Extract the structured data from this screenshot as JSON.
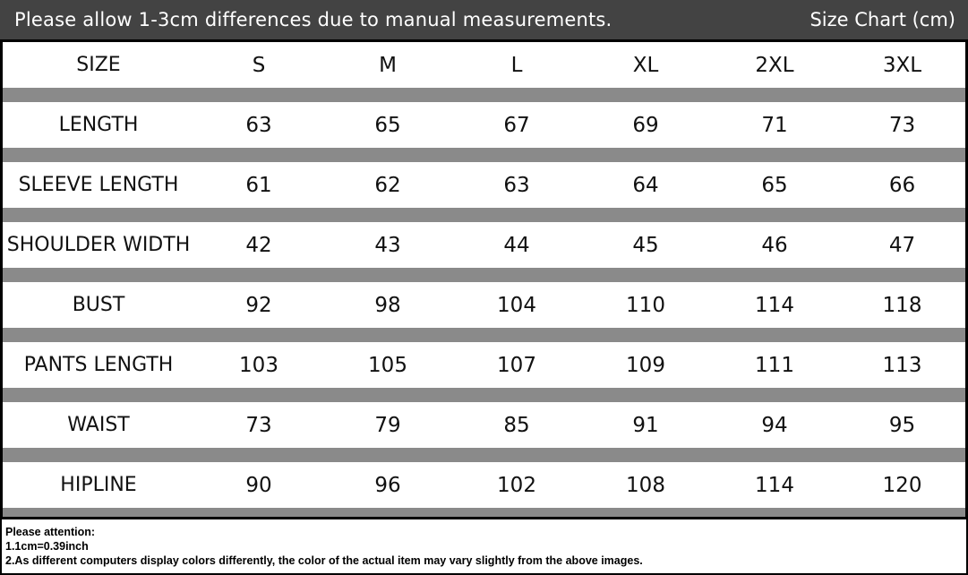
{
  "header": {
    "note": "Please allow 1-3cm differences due to manual measurements.",
    "title": "Size Chart (cm)"
  },
  "table": {
    "columns": [
      "SIZE",
      "S",
      "M",
      "L",
      "XL",
      "2XL",
      "3XL"
    ],
    "rows": [
      {
        "label": "LENGTH",
        "values": [
          "63",
          "65",
          "67",
          "69",
          "71",
          "73"
        ]
      },
      {
        "label": "SLEEVE LENGTH",
        "values": [
          "61",
          "62",
          "63",
          "64",
          "65",
          "66"
        ]
      },
      {
        "label": "SHOULDER WIDTH",
        "values": [
          "42",
          "43",
          "44",
          "45",
          "46",
          "47"
        ]
      },
      {
        "label": "BUST",
        "values": [
          "92",
          "98",
          "104",
          "110",
          "114",
          "118"
        ]
      },
      {
        "label": "PANTS LENGTH",
        "values": [
          "103",
          "105",
          "107",
          "109",
          "111",
          "113"
        ]
      },
      {
        "label": "WAIST",
        "values": [
          "73",
          "79",
          "85",
          "91",
          "94",
          "95"
        ]
      },
      {
        "label": "HIPLINE",
        "values": [
          "90",
          "96",
          "102",
          "108",
          "114",
          "120"
        ]
      }
    ]
  },
  "footer": {
    "heading": "Please attention:",
    "line1": "1.1cm=0.39inch",
    "line2": "2.As different computers display colors differently, the color of the actual item may vary slightly from the above images."
  },
  "colors": {
    "header_bg": "#434343",
    "band": "#8a8a8a",
    "border": "#000000"
  }
}
